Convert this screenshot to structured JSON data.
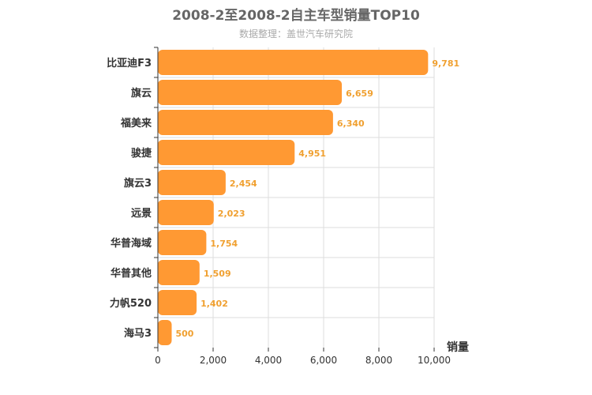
{
  "chart_data": {
    "type": "bar",
    "orientation": "horizontal",
    "title": "2008-2至2008-2自主车型销量TOP10",
    "subtitle": "数据整理：盖世汽车研究院",
    "categories": [
      "比亚迪F3",
      "旗云",
      "福美来",
      "骏捷",
      "旗云3",
      "远景",
      "华普海域",
      "华普其他",
      "力帆520",
      "海马3"
    ],
    "values": [
      9781,
      6659,
      6340,
      4951,
      2454,
      2023,
      1754,
      1509,
      1402,
      500
    ],
    "value_labels": [
      "9,781",
      "6,659",
      "6,340",
      "4,951",
      "2,454",
      "2,023",
      "1,754",
      "1,509",
      "1,402",
      "500"
    ],
    "xlim": [
      0,
      10000
    ],
    "xticks": [
      0,
      2000,
      4000,
      6000,
      8000,
      10000
    ],
    "xtick_labels": [
      "0",
      "2,000",
      "4,000",
      "6,000",
      "8,000",
      "10,000"
    ],
    "xlabel": "销量",
    "ylabel": "",
    "grid": true,
    "legend": "none",
    "colors": {
      "bar": "#ff9933",
      "data_label": "#f0a030",
      "grid": "#dddddd",
      "axis": "#333333"
    }
  }
}
